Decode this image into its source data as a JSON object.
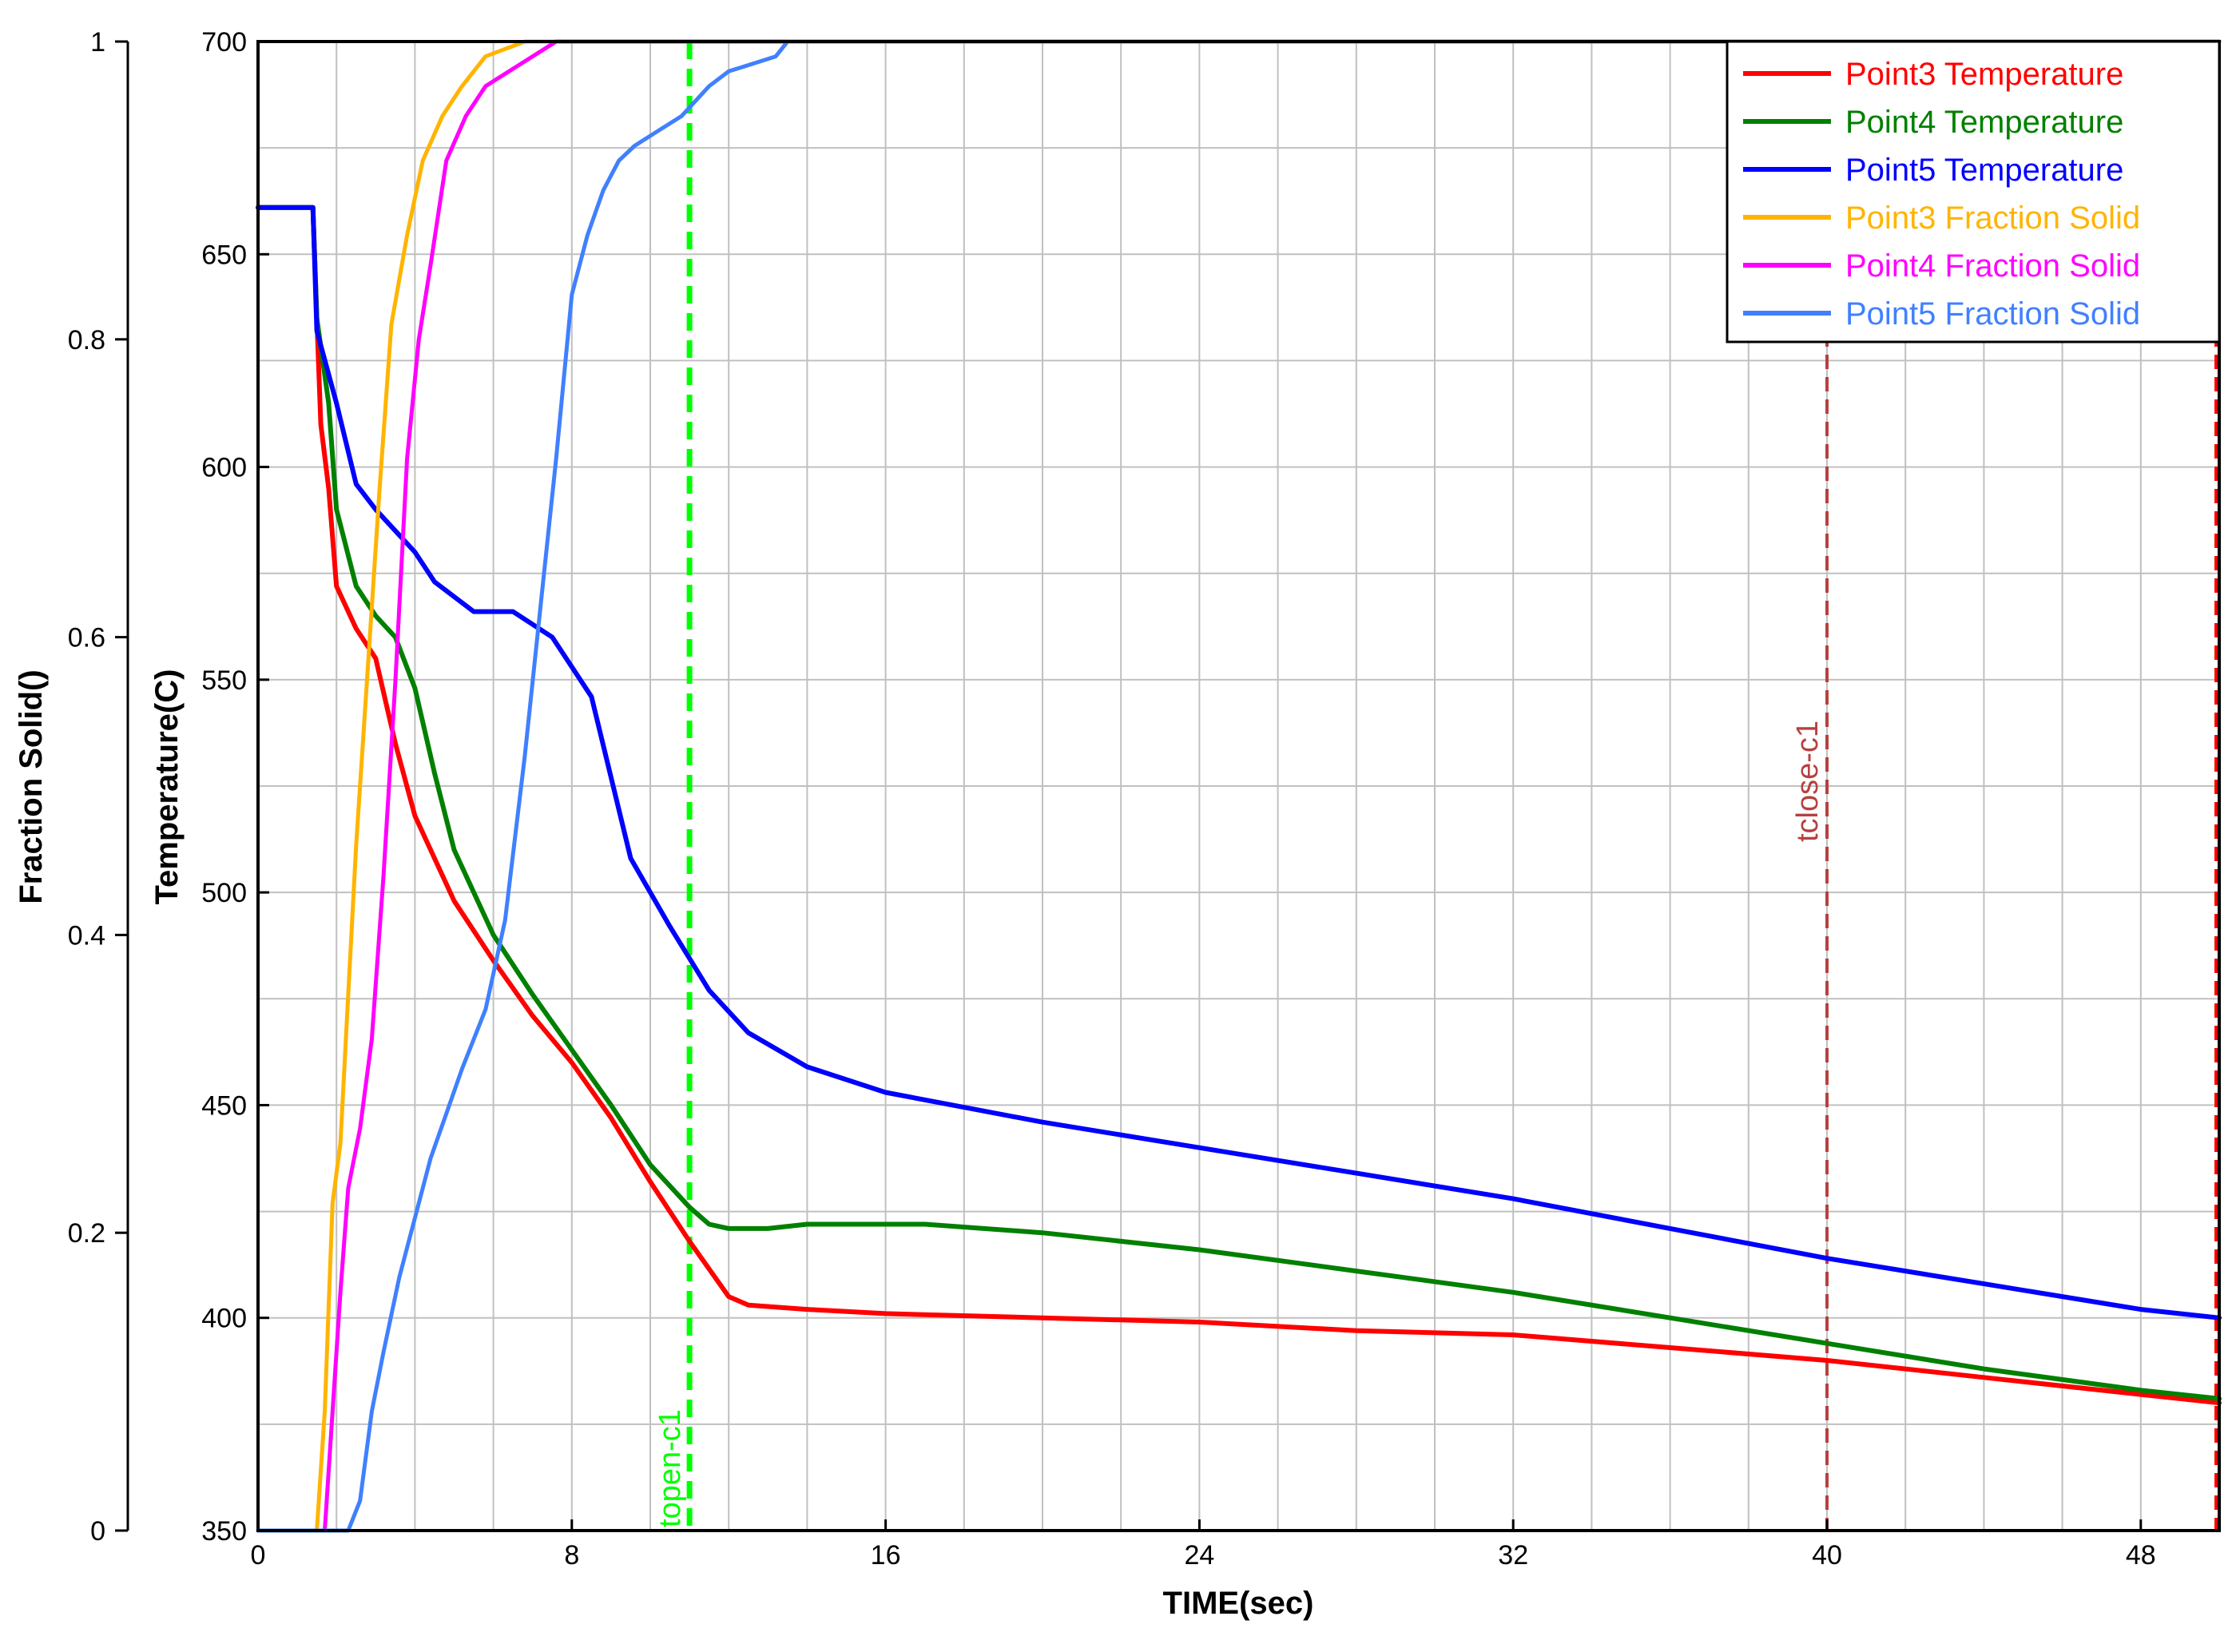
{
  "chart_data": {
    "type": "line",
    "xlabel": "TIME(sec)",
    "ylabel_left": "Fraction Solid()",
    "ylabel_right_inner": "Temperature(C)",
    "xlim": [
      0,
      50
    ],
    "ylim_temperature": [
      350,
      700
    ],
    "ylim_fraction": [
      0,
      1
    ],
    "x_ticks": [
      0,
      8,
      16,
      24,
      32,
      40,
      48
    ],
    "y_ticks_temperature": [
      350,
      400,
      450,
      500,
      550,
      600,
      650,
      700
    ],
    "y_ticks_fraction": [
      "0",
      "0.2",
      "0.4",
      "0.6",
      "0.8",
      "1"
    ],
    "grid": true,
    "legend_position": "top-right",
    "series": [
      {
        "name": "Point3 Temperature",
        "axis": "temperature",
        "color": "#ff0000",
        "x": [
          0,
          1.4,
          1.5,
          1.6,
          1.8,
          2.0,
          2.5,
          3.0,
          3.5,
          4.0,
          5.0,
          6.0,
          7.0,
          8.0,
          9.0,
          10.0,
          11.0,
          12.0,
          12.5,
          14,
          16,
          20,
          24,
          28,
          32,
          36,
          40,
          44,
          48,
          50
        ],
        "y": [
          661,
          661,
          635,
          610,
          595,
          572,
          562,
          555,
          535,
          518,
          498,
          484,
          471,
          460,
          447,
          432,
          418,
          405,
          403,
          402,
          401,
          400,
          399,
          397,
          396,
          393,
          390,
          386,
          382,
          380
        ]
      },
      {
        "name": "Point4 Temperature",
        "axis": "temperature",
        "color": "#008000",
        "x": [
          0,
          1.4,
          1.5,
          1.8,
          2.0,
          2.5,
          3.0,
          3.5,
          4.0,
          4.5,
          5.0,
          6.0,
          7.0,
          8.0,
          9.0,
          10.0,
          11.0,
          11.5,
          12.0,
          13.0,
          14.0,
          16.0,
          17.0,
          20,
          24,
          28,
          32,
          36,
          40,
          44,
          48,
          50
        ],
        "y": [
          661,
          661,
          635,
          615,
          590,
          572,
          565,
          560,
          548,
          528,
          510,
          490,
          476,
          463,
          450,
          436,
          426,
          422,
          421,
          421,
          422,
          422,
          422,
          420,
          416,
          411,
          406,
          400,
          394,
          388,
          383,
          381
        ]
      },
      {
        "name": "Point5 Temperature",
        "axis": "temperature",
        "color": "#0000ff",
        "x": [
          0,
          1.4,
          1.5,
          2.0,
          2.5,
          3.0,
          4.0,
          4.5,
          5.5,
          6.5,
          7.5,
          8.5,
          9.5,
          10.5,
          11.5,
          12.5,
          14.0,
          16.0,
          20,
          24,
          28,
          32,
          36,
          40,
          44,
          48,
          50
        ],
        "y": [
          661,
          661,
          632,
          615,
          596,
          590,
          580,
          573,
          566,
          566,
          560,
          546,
          508,
          492,
          477,
          467,
          459,
          453,
          446,
          440,
          434,
          428,
          421,
          414,
          408,
          402,
          400
        ]
      },
      {
        "name": "Point3 Fraction Solid",
        "axis": "fraction",
        "color": "#ffb400",
        "x": [
          0,
          1.5,
          1.7,
          1.9,
          2.1,
          2.3,
          2.5,
          2.8,
          3.1,
          3.4,
          3.8,
          4.2,
          4.7,
          5.2,
          5.8,
          6.3,
          6.8,
          7.2,
          50
        ],
        "y": [
          0,
          0,
          0.08,
          0.22,
          0.26,
          0.36,
          0.46,
          0.58,
          0.7,
          0.81,
          0.87,
          0.92,
          0.95,
          0.97,
          0.99,
          0.995,
          1.0,
          1.0,
          1.0
        ]
      },
      {
        "name": "Point4 Fraction Solid",
        "axis": "fraction",
        "color": "#ff00ff",
        "x": [
          0,
          1.7,
          1.9,
          2.1,
          2.3,
          2.6,
          2.9,
          3.2,
          3.5,
          3.8,
          4.1,
          4.4,
          4.8,
          5.3,
          5.8,
          6.4,
          7.0,
          7.6,
          8.0,
          50
        ],
        "y": [
          0,
          0,
          0.08,
          0.16,
          0.23,
          0.27,
          0.33,
          0.44,
          0.57,
          0.72,
          0.8,
          0.85,
          0.92,
          0.95,
          0.97,
          0.98,
          0.99,
          1.0,
          1.0,
          1.0
        ]
      },
      {
        "name": "Point5 Fraction Solid",
        "axis": "fraction",
        "color": "#4080ff",
        "x": [
          0,
          2.3,
          2.6,
          2.9,
          3.2,
          3.6,
          4.0,
          4.4,
          4.8,
          5.2,
          5.8,
          6.3,
          6.8,
          7.2,
          7.6,
          8.0,
          8.4,
          8.8,
          9.2,
          9.6,
          10.2,
          10.8,
          11.5,
          12.0,
          12.6,
          13.2,
          13.5,
          50
        ],
        "y": [
          0,
          0,
          0.02,
          0.08,
          0.12,
          0.17,
          0.21,
          0.25,
          0.28,
          0.31,
          0.35,
          0.41,
          0.52,
          0.62,
          0.72,
          0.83,
          0.87,
          0.9,
          0.92,
          0.93,
          0.94,
          0.95,
          0.97,
          0.98,
          0.985,
          0.99,
          1.0,
          1.0
        ]
      }
    ],
    "vertical_markers": [
      {
        "label": "topen-c1",
        "x": 11,
        "color": "#00ff00"
      },
      {
        "label": "tclose-c1",
        "x": 40,
        "color": "#b84040"
      },
      {
        "label": "",
        "x": 50,
        "color": "#ff0000"
      }
    ]
  }
}
